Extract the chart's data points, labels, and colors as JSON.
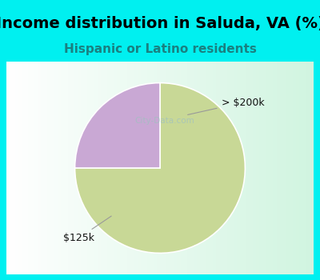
{
  "title": "Income distribution in Saluda, VA (%)",
  "subtitle": "Hispanic or Latino residents",
  "title_color": "#000000",
  "subtitle_color": "#1a8080",
  "title_fontsize": 14,
  "subtitle_fontsize": 11,
  "background_color_top": "#00f0f0",
  "slices": [
    {
      "label": "$125k",
      "value": 75,
      "color": "#c8d896"
    },
    {
      "label": "> $200k",
      "value": 25,
      "color": "#c9a8d4"
    }
  ],
  "startangle": 90,
  "label_fontsize": 9,
  "label_color": "#111111",
  "watermark": "City-Data.com",
  "watermark_color": "#a0c0c0"
}
